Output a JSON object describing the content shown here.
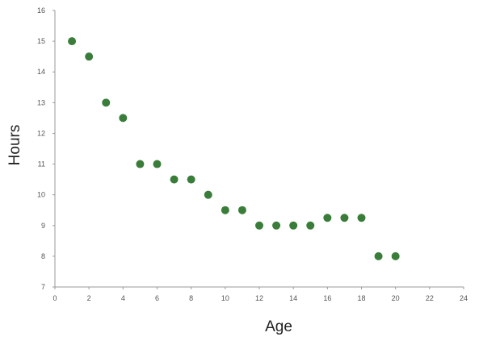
{
  "chart_data": {
    "type": "scatter",
    "title": "",
    "xlabel": "Age",
    "ylabel": "Hours",
    "xlim": [
      0,
      24
    ],
    "ylim": [
      7,
      16
    ],
    "xticks": [
      0,
      2,
      4,
      6,
      8,
      10,
      12,
      14,
      16,
      18,
      20,
      22,
      24
    ],
    "yticks": [
      7,
      8,
      9,
      10,
      11,
      12,
      13,
      14,
      15,
      16
    ],
    "grid": false,
    "legend": "none",
    "marker_color": "#3a7d3a",
    "points": [
      {
        "x": 1,
        "y": 15
      },
      {
        "x": 2,
        "y": 14.5
      },
      {
        "x": 3,
        "y": 13
      },
      {
        "x": 4,
        "y": 12.5
      },
      {
        "x": 5,
        "y": 11
      },
      {
        "x": 6,
        "y": 11
      },
      {
        "x": 7,
        "y": 10.5
      },
      {
        "x": 8,
        "y": 10.5
      },
      {
        "x": 9,
        "y": 10
      },
      {
        "x": 10,
        "y": 9.5
      },
      {
        "x": 11,
        "y": 9.5
      },
      {
        "x": 12,
        "y": 9
      },
      {
        "x": 13,
        "y": 9
      },
      {
        "x": 14,
        "y": 9
      },
      {
        "x": 15,
        "y": 9
      },
      {
        "x": 16,
        "y": 9.25
      },
      {
        "x": 17,
        "y": 9.25
      },
      {
        "x": 18,
        "y": 9.25
      },
      {
        "x": 19,
        "y": 8
      },
      {
        "x": 20,
        "y": 8
      }
    ]
  }
}
